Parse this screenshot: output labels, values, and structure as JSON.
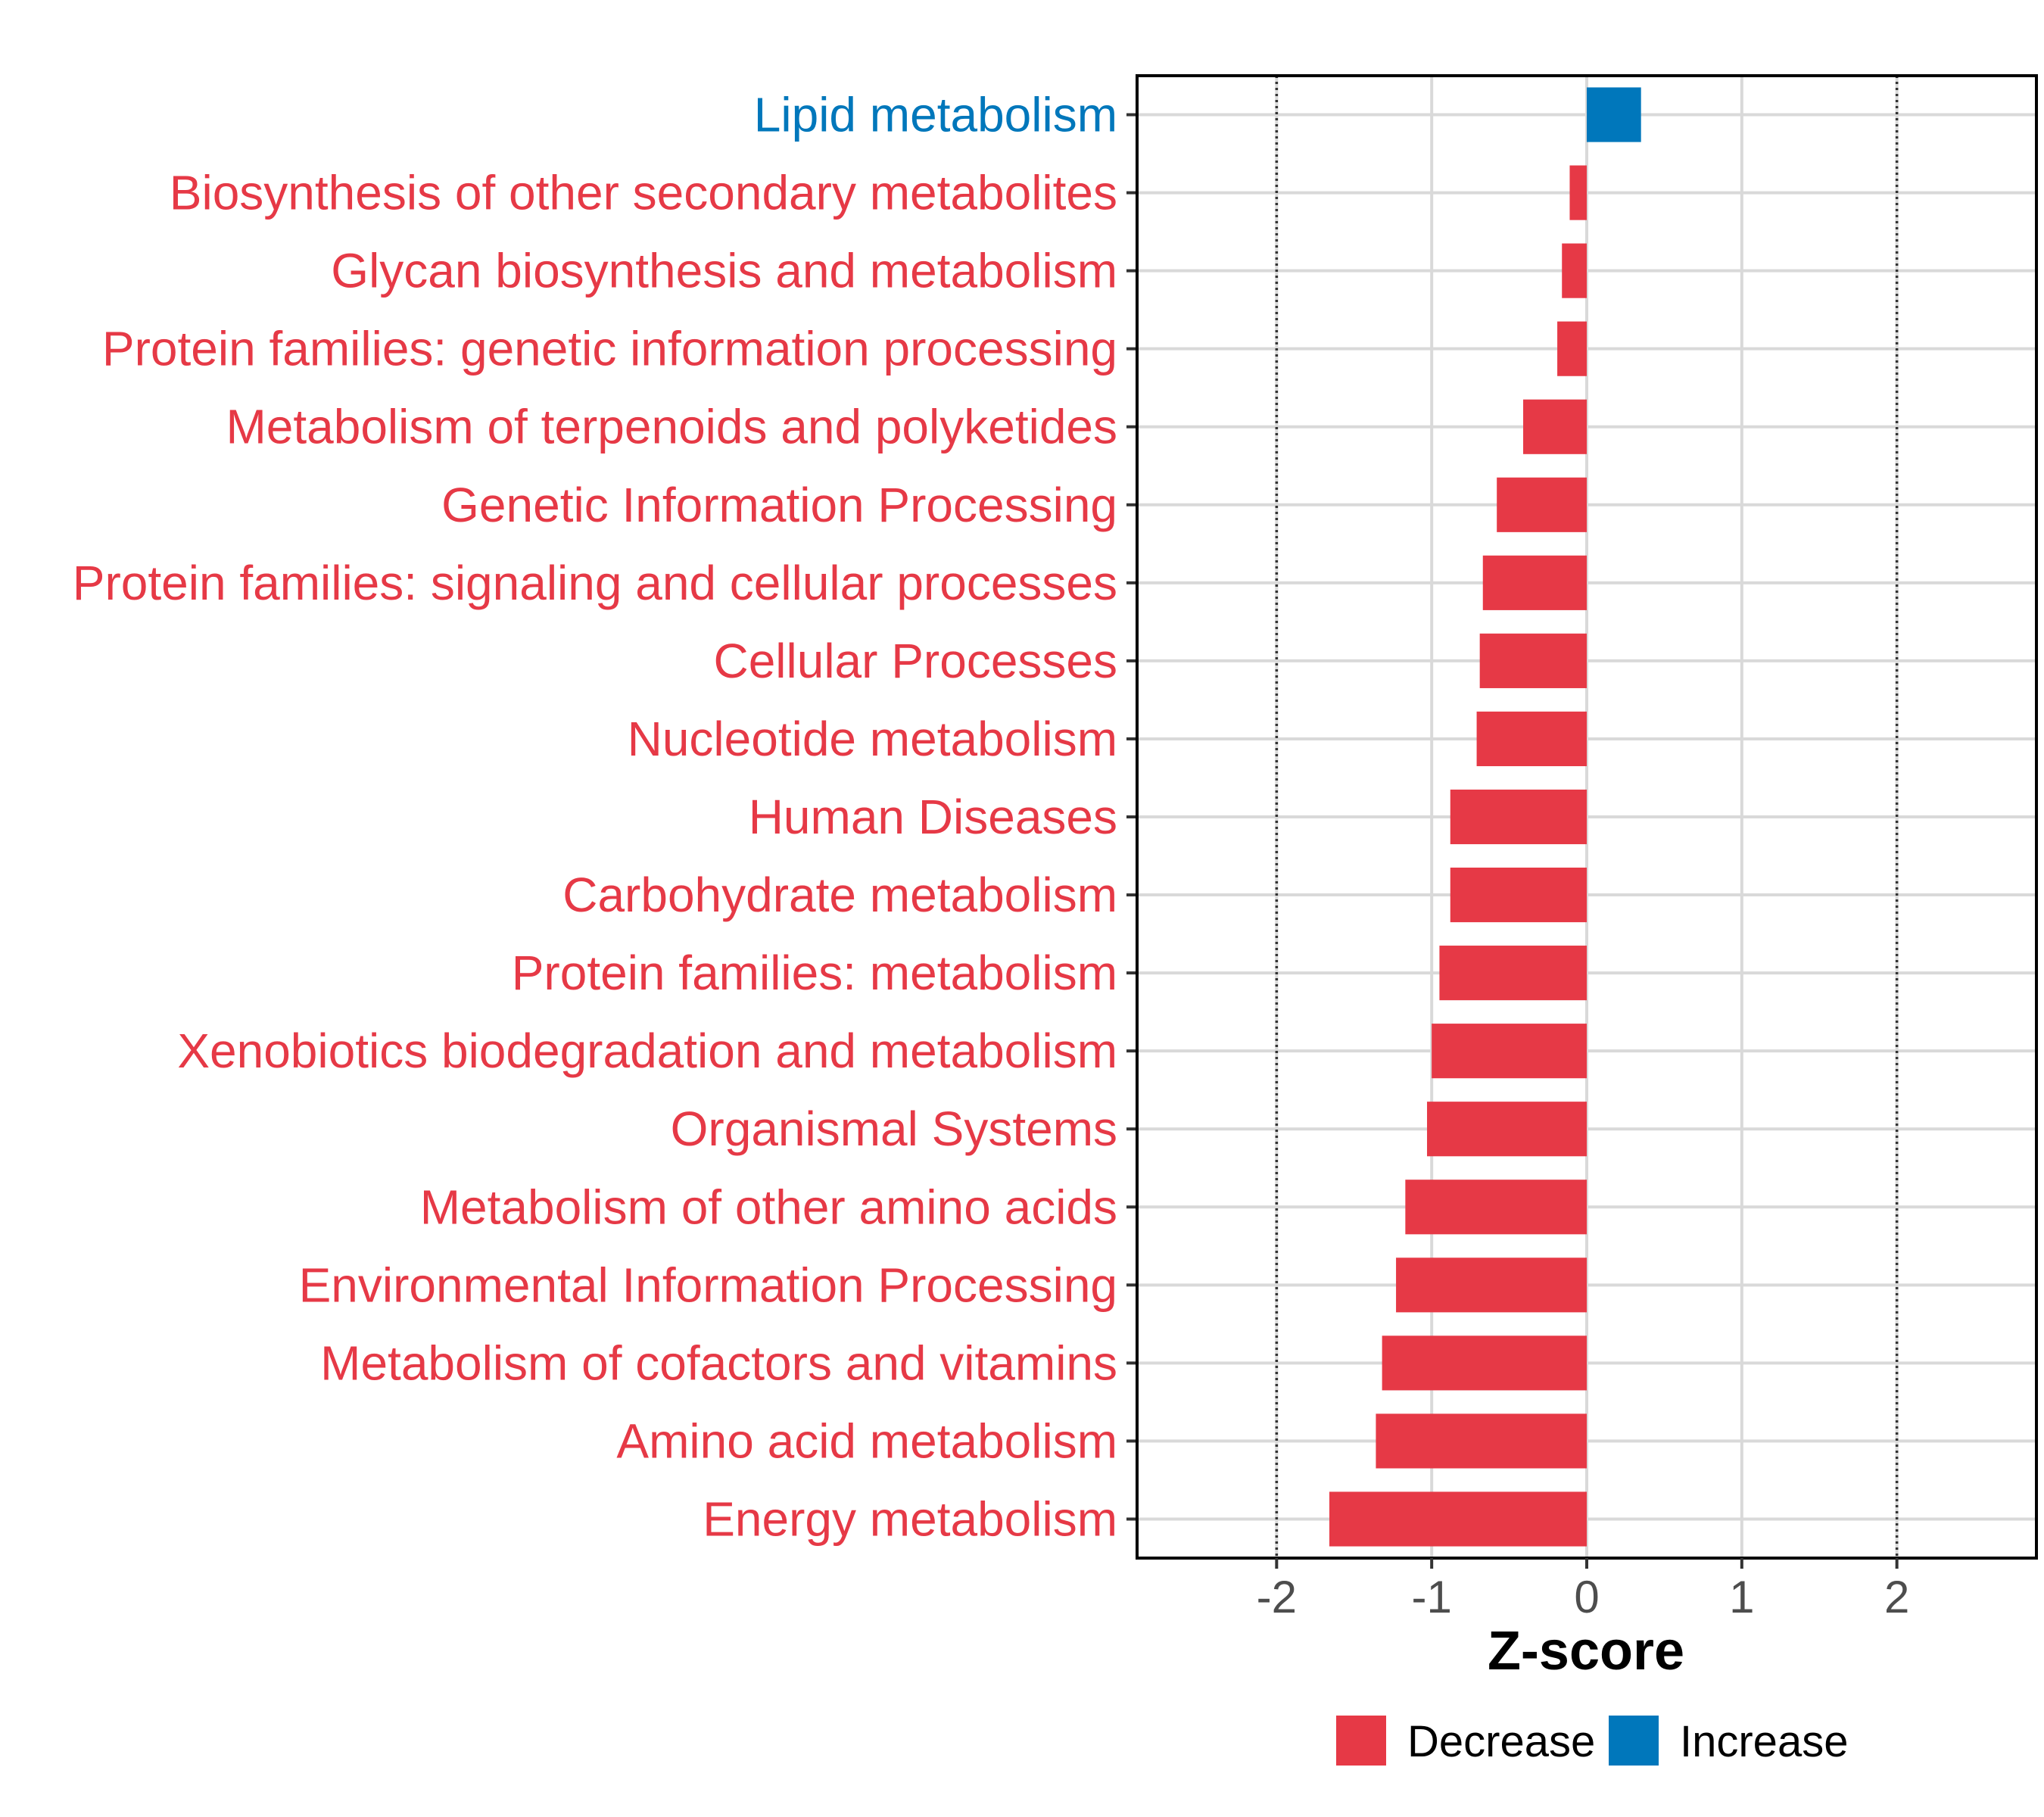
{
  "colors": {
    "decrease": "#e63946",
    "increase": "#0077bb",
    "grid": "#d9d9d9",
    "refline": "#333333",
    "axis": "#000000"
  },
  "chart_data": {
    "type": "bar",
    "orientation": "horizontal",
    "title": "",
    "xlabel": "Z-score",
    "ylabel": "",
    "xlim": [
      -2.9,
      2.9
    ],
    "xticks": [
      -2,
      -1,
      0,
      1,
      2
    ],
    "xtick_labels": [
      "-2",
      "-1",
      "0",
      "1",
      "2"
    ],
    "reference_lines": [
      -2,
      2
    ],
    "grid": true,
    "categories": [
      "Lipid metabolism",
      "Biosynthesis of other secondary metabolites",
      "Glycan biosynthesis and metabolism",
      "Protein families: genetic information processing",
      "Metabolism of terpenoids and polyketides",
      "Genetic Information Processing",
      "Protein families: signaling and cellular processes",
      "Cellular Processes",
      "Nucleotide metabolism",
      "Human Diseases",
      "Carbohydrate metabolism",
      "Protein families: metabolism",
      "Xenobiotics biodegradation and metabolism",
      "Organismal Systems",
      "Metabolism of other amino acids",
      "Environmental Information Processing",
      "Metabolism of cofactors and vitamins",
      "Amino acid metabolism",
      "Energy metabolism"
    ],
    "values": [
      0.35,
      -0.11,
      -0.16,
      -0.19,
      -0.41,
      -0.58,
      -0.67,
      -0.69,
      -0.71,
      -0.88,
      -0.88,
      -0.95,
      -1.0,
      -1.03,
      -1.17,
      -1.23,
      -1.32,
      -1.36,
      -1.66
    ],
    "groups": [
      "Increase",
      "Decrease",
      "Decrease",
      "Decrease",
      "Decrease",
      "Decrease",
      "Decrease",
      "Decrease",
      "Decrease",
      "Decrease",
      "Decrease",
      "Decrease",
      "Decrease",
      "Decrease",
      "Decrease",
      "Decrease",
      "Decrease",
      "Decrease",
      "Decrease"
    ],
    "legend": {
      "position": "bottom",
      "entries": [
        {
          "label": "Decrease",
          "group": "Decrease"
        },
        {
          "label": "Increase",
          "group": "Increase"
        }
      ]
    }
  }
}
